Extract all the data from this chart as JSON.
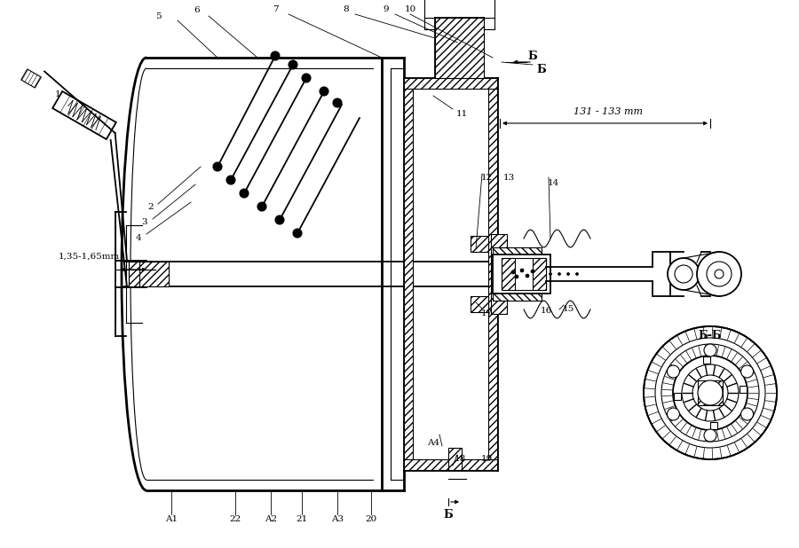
{
  "bg_color": "#ffffff",
  "dim1": "1,35-1,65mm",
  "dim2": "131 - 133 mm",
  "section_label": "Б-Б",
  "B_label": "Б",
  "figsize": [
    9.0,
    6.18
  ],
  "dpi": 100
}
